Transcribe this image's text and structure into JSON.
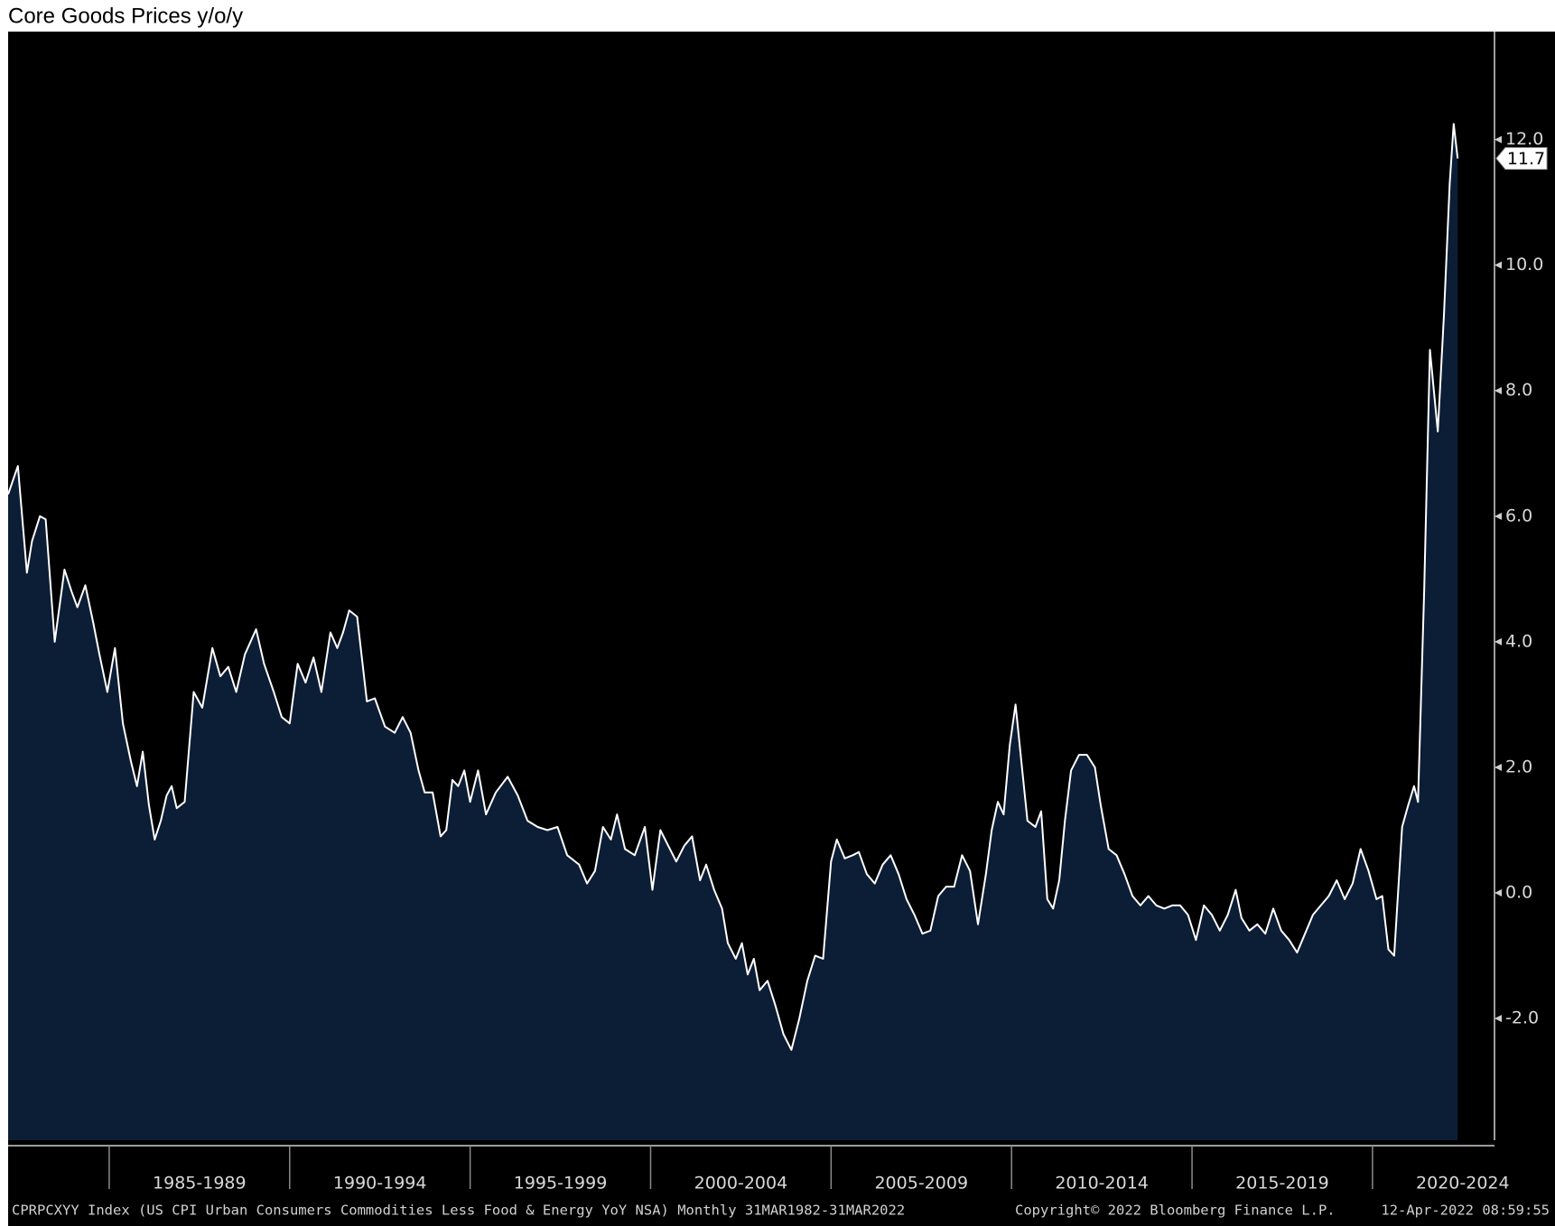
{
  "chart_data": {
    "type": "area",
    "title": "Core Goods Prices y/o/y",
    "footer": {
      "source": "CPRPCXYY Index (US CPI Urban Consumers Commodities Less Food & Energy YoY NSA)  Monthly 31MAR1982-31MAR2022",
      "copyright": "Copyright© 2022 Bloomberg Finance L.P.",
      "timestamp": "12-Apr-2022 08:59:55"
    },
    "x": [
      1982.2,
      1982.47,
      1982.72,
      1982.86,
      1983.08,
      1983.24,
      1983.49,
      1983.76,
      1983.96,
      1984.12,
      1984.34,
      1984.56,
      1984.73,
      1984.95,
      1985.16,
      1985.38,
      1985.6,
      1985.77,
      1985.93,
      1986.1,
      1986.26,
      1986.43,
      1986.59,
      1986.73,
      1986.87,
      1987.09,
      1987.34,
      1987.58,
      1987.86,
      1988.08,
      1988.3,
      1988.52,
      1988.76,
      1989.07,
      1989.29,
      1989.56,
      1989.78,
      1990.0,
      1990.22,
      1990.44,
      1990.66,
      1990.88,
      1991.13,
      1991.32,
      1991.48,
      1991.65,
      1991.87,
      1992.14,
      1992.36,
      1992.64,
      1992.91,
      1993.13,
      1993.35,
      1993.57,
      1993.74,
      1993.96,
      1994.18,
      1994.34,
      1994.51,
      1994.67,
      1994.84,
      1995.0,
      1995.22,
      1995.44,
      1995.71,
      1996.04,
      1996.32,
      1996.59,
      1996.87,
      1997.14,
      1997.42,
      1997.69,
      1998.02,
      1998.24,
      1998.46,
      1998.68,
      1998.9,
      1999.07,
      1999.29,
      1999.56,
      1999.84,
      2000.05,
      2000.27,
      2000.49,
      2000.71,
      2000.93,
      2001.15,
      2001.37,
      2001.54,
      2001.76,
      2001.98,
      2002.14,
      2002.36,
      2002.53,
      2002.69,
      2002.86,
      2003.02,
      2003.24,
      2003.46,
      2003.68,
      2003.9,
      2004.12,
      2004.34,
      2004.56,
      2004.78,
      2005.0,
      2005.16,
      2005.38,
      2005.6,
      2005.77,
      2005.99,
      2006.21,
      2006.43,
      2006.65,
      2006.87,
      2007.09,
      2007.31,
      2007.53,
      2007.75,
      2007.97,
      2008.19,
      2008.41,
      2008.63,
      2008.85,
      2009.07,
      2009.29,
      2009.45,
      2009.62,
      2009.78,
      2009.95,
      2010.11,
      2010.27,
      2010.44,
      2010.66,
      2010.82,
      2010.99,
      2011.15,
      2011.32,
      2011.48,
      2011.65,
      2011.87,
      2012.09,
      2012.31,
      2012.47,
      2012.69,
      2012.91,
      2013.13,
      2013.35,
      2013.57,
      2013.79,
      2014.01,
      2014.23,
      2014.45,
      2014.67,
      2014.89,
      2015.11,
      2015.33,
      2015.55,
      2015.77,
      2015.99,
      2016.21,
      2016.37,
      2016.59,
      2016.81,
      2017.03,
      2017.25,
      2017.47,
      2017.69,
      2017.91,
      2018.13,
      2018.35,
      2018.57,
      2018.79,
      2019.01,
      2019.23,
      2019.45,
      2019.67,
      2019.89,
      2020.11,
      2020.27,
      2020.44,
      2020.6,
      2020.82,
      2020.99,
      2021.15,
      2021.26,
      2021.43,
      2021.59,
      2021.81,
      2021.98,
      2022.14,
      2022.25,
      2022.36
    ],
    "series": [
      {
        "name": "CPRPCXYY Index",
        "color": "#ffffff",
        "fill": "#0c1d36",
        "values": [
          6.35,
          6.8,
          5.1,
          5.6,
          6.0,
          5.95,
          4.0,
          5.15,
          4.8,
          4.55,
          4.9,
          4.3,
          3.8,
          3.2,
          3.9,
          2.7,
          2.1,
          1.7,
          2.25,
          1.4,
          0.85,
          1.15,
          1.55,
          1.7,
          1.35,
          1.45,
          3.2,
          2.95,
          3.9,
          3.45,
          3.6,
          3.2,
          3.8,
          4.2,
          3.65,
          3.2,
          2.8,
          2.7,
          3.65,
          3.35,
          3.75,
          3.2,
          4.15,
          3.9,
          4.15,
          4.5,
          4.4,
          3.05,
          3.1,
          2.65,
          2.55,
          2.8,
          2.55,
          1.95,
          1.6,
          1.6,
          0.9,
          1.0,
          1.8,
          1.7,
          1.95,
          1.45,
          1.95,
          1.25,
          1.6,
          1.85,
          1.55,
          1.15,
          1.05,
          1.0,
          1.05,
          0.6,
          0.45,
          0.15,
          0.35,
          1.05,
          0.85,
          1.25,
          0.7,
          0.6,
          1.05,
          0.05,
          1.0,
          0.75,
          0.5,
          0.75,
          0.9,
          0.2,
          0.45,
          0.05,
          -0.25,
          -0.8,
          -1.05,
          -0.8,
          -1.3,
          -1.05,
          -1.55,
          -1.4,
          -1.8,
          -2.25,
          -2.5,
          -2.0,
          -1.4,
          -1.0,
          -1.05,
          0.5,
          0.85,
          0.55,
          0.6,
          0.65,
          0.3,
          0.15,
          0.45,
          0.6,
          0.3,
          -0.1,
          -0.35,
          -0.65,
          -0.6,
          -0.05,
          0.1,
          0.1,
          0.6,
          0.35,
          -0.5,
          0.3,
          1.0,
          1.45,
          1.25,
          2.35,
          3.0,
          2.1,
          1.15,
          1.05,
          1.3,
          -0.1,
          -0.25,
          0.2,
          1.15,
          1.95,
          2.2,
          2.2,
          2.0,
          1.4,
          0.7,
          0.6,
          0.3,
          -0.05,
          -0.2,
          -0.05,
          -0.2,
          -0.25,
          -0.2,
          -0.2,
          -0.35,
          -0.75,
          -0.2,
          -0.35,
          -0.6,
          -0.35,
          0.05,
          -0.4,
          -0.6,
          -0.5,
          -0.65,
          -0.25,
          -0.6,
          -0.75,
          -0.95,
          -0.65,
          -0.35,
          -0.2,
          -0.05,
          0.2,
          -0.1,
          0.15,
          0.7,
          0.35,
          -0.1,
          -0.05,
          -0.9,
          -1.0,
          1.05,
          1.4,
          1.7,
          1.45,
          4.8,
          8.65,
          7.35,
          9.2,
          11.3,
          12.25,
          11.7
        ]
      }
    ],
    "xlim": [
      1982.2,
      2023.38
    ],
    "xticks": [
      {
        "value": 1985,
        "label": "1985-1989"
      },
      {
        "value": 1990,
        "label": "1990-1994"
      },
      {
        "value": 1995,
        "label": "1995-1999"
      },
      {
        "value": 2000,
        "label": "2000-2004"
      },
      {
        "value": 2005,
        "label": "2005-2009"
      },
      {
        "value": 2010,
        "label": "2010-2014"
      },
      {
        "value": 2015,
        "label": "2015-2019"
      },
      {
        "value": 2020,
        "label": "2020-2024"
      }
    ],
    "ylim": [
      -3.94,
      13.72
    ],
    "yticks": [
      {
        "value": -2,
        "label": "-2.0"
      },
      {
        "value": 0,
        "label": "0.0"
      },
      {
        "value": 2,
        "label": "2.0"
      },
      {
        "value": 4,
        "label": "4.0"
      },
      {
        "value": 6,
        "label": "6.0"
      },
      {
        "value": 8,
        "label": "8.0"
      },
      {
        "value": 10,
        "label": "10.0"
      },
      {
        "value": 12,
        "label": "12.0"
      }
    ],
    "grid": false
  }
}
